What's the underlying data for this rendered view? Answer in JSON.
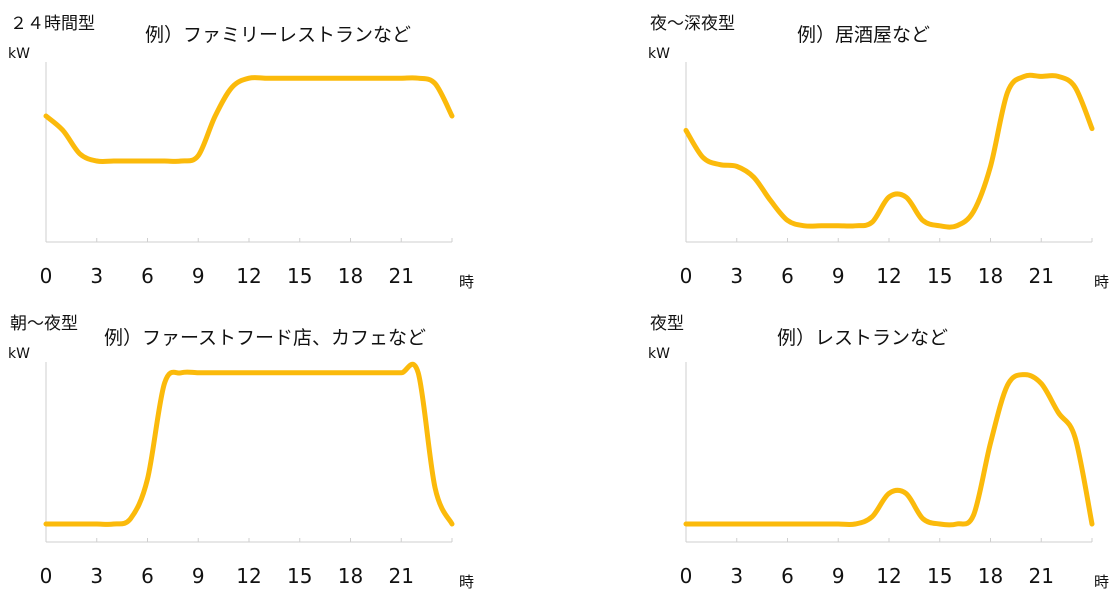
{
  "chart_data": [
    {
      "type": "line",
      "title": "２４時間型",
      "subtitle": "例）ファミリーレストランなど",
      "ylabel": "kW",
      "xlabel_unit": "時",
      "x_ticks": [
        0,
        3,
        6,
        9,
        12,
        15,
        18,
        21
      ],
      "x_tick_labels": [
        "0",
        "3",
        "6",
        "9",
        "12",
        "15",
        "18",
        "21"
      ],
      "xlim": [
        0,
        24
      ],
      "ylim": [
        0,
        1
      ],
      "color": "#FBBA0B",
      "grid": false,
      "x": [
        0,
        1,
        2,
        3,
        4,
        5,
        6,
        7,
        8,
        9,
        10,
        11,
        12,
        13,
        14,
        15,
        16,
        17,
        18,
        19,
        20,
        21,
        22,
        23,
        24
      ],
      "y": [
        0.7,
        0.62,
        0.49,
        0.45,
        0.45,
        0.45,
        0.45,
        0.45,
        0.45,
        0.48,
        0.7,
        0.86,
        0.91,
        0.91,
        0.91,
        0.91,
        0.91,
        0.91,
        0.91,
        0.91,
        0.91,
        0.91,
        0.91,
        0.88,
        0.7
      ]
    },
    {
      "type": "line",
      "title": "夜～深夜型",
      "subtitle": "例）居酒屋など",
      "ylabel": "kW",
      "xlabel_unit": "時",
      "x_ticks": [
        0,
        3,
        6,
        9,
        12,
        15,
        18,
        21
      ],
      "x_tick_labels": [
        "0",
        "3",
        "6",
        "9",
        "12",
        "15",
        "18",
        "21"
      ],
      "xlim": [
        0,
        24
      ],
      "ylim": [
        0,
        1
      ],
      "color": "#FBBA0B",
      "grid": false,
      "x": [
        0,
        1,
        2,
        3,
        4,
        5,
        6,
        7,
        8,
        9,
        10,
        11,
        12,
        13,
        14,
        15,
        16,
        17,
        18,
        19,
        20,
        21,
        22,
        23,
        24
      ],
      "y": [
        0.62,
        0.47,
        0.43,
        0.42,
        0.36,
        0.23,
        0.12,
        0.09,
        0.09,
        0.09,
        0.09,
        0.11,
        0.25,
        0.25,
        0.12,
        0.09,
        0.09,
        0.17,
        0.42,
        0.83,
        0.92,
        0.92,
        0.92,
        0.86,
        0.63
      ]
    },
    {
      "type": "line",
      "title": "朝～夜型",
      "subtitle": "例）ファーストフード店、カフェなど",
      "ylabel": "kW",
      "xlabel_unit": "時",
      "x_ticks": [
        0,
        3,
        6,
        9,
        12,
        15,
        18,
        21
      ],
      "x_tick_labels": [
        "0",
        "3",
        "6",
        "9",
        "12",
        "15",
        "18",
        "21"
      ],
      "xlim": [
        0,
        24
      ],
      "ylim": [
        0,
        1
      ],
      "color": "#FBBA0B",
      "grid": false,
      "x": [
        0,
        1,
        2,
        3,
        4,
        5,
        6,
        7,
        8,
        9,
        10,
        11,
        12,
        13,
        14,
        15,
        16,
        17,
        18,
        19,
        20,
        21,
        22,
        23,
        24
      ],
      "y": [
        0.1,
        0.1,
        0.1,
        0.1,
        0.1,
        0.13,
        0.35,
        0.88,
        0.94,
        0.94,
        0.94,
        0.94,
        0.94,
        0.94,
        0.94,
        0.94,
        0.94,
        0.94,
        0.94,
        0.94,
        0.94,
        0.94,
        0.94,
        0.3,
        0.1
      ]
    },
    {
      "type": "line",
      "title": "夜型",
      "subtitle": "例）レストランなど",
      "ylabel": "kW",
      "xlabel_unit": "時",
      "x_ticks": [
        0,
        3,
        6,
        9,
        12,
        15,
        18,
        21
      ],
      "x_tick_labels": [
        "0",
        "3",
        "6",
        "9",
        "12",
        "15",
        "18",
        "21"
      ],
      "xlim": [
        0,
        24
      ],
      "ylim": [
        0,
        1
      ],
      "color": "#FBBA0B",
      "grid": false,
      "x": [
        0,
        1,
        2,
        3,
        4,
        5,
        6,
        7,
        8,
        9,
        10,
        11,
        12,
        13,
        14,
        15,
        16,
        17,
        18,
        19,
        20,
        21,
        22,
        23,
        24
      ],
      "y": [
        0.1,
        0.1,
        0.1,
        0.1,
        0.1,
        0.1,
        0.1,
        0.1,
        0.1,
        0.1,
        0.1,
        0.14,
        0.27,
        0.27,
        0.13,
        0.1,
        0.1,
        0.15,
        0.55,
        0.87,
        0.93,
        0.88,
        0.72,
        0.58,
        0.1
      ]
    }
  ]
}
